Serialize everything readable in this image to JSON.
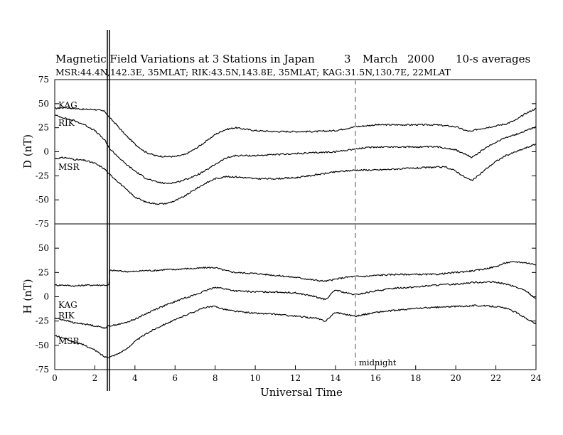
{
  "chart_data": [
    {
      "type": "line",
      "panel": "D",
      "title": "Magnetic Field Variations at 3 Stations in Japan",
      "date_parts": [
        "3",
        "March",
        "2000"
      ],
      "averaging": "10-s averages",
      "subtitle": "MSR:44.4N,142.3E, 35MLAT;  RIK:43.5N,143.8E, 35MLAT;  KAG:31.5N,130.7E, 22MLAT",
      "ylabel": "D (nT)",
      "xlim": [
        0,
        24
      ],
      "ylim": [
        -75,
        75
      ],
      "yticks": [
        75,
        50,
        25,
        0,
        -25,
        -50,
        -75
      ],
      "ytick_labels": [
        "75",
        "50",
        "25",
        "0",
        "-25",
        "-50",
        "-75"
      ],
      "x": [
        0,
        0.5,
        1,
        1.5,
        2,
        2.5,
        2.7,
        3,
        3.5,
        4,
        4.5,
        5,
        5.5,
        6,
        6.5,
        7,
        7.5,
        8,
        8.5,
        9,
        10,
        11,
        12,
        13,
        14,
        15,
        16,
        17,
        18,
        19,
        19.5,
        20,
        20.5,
        20.8,
        21,
        21.5,
        22,
        22.5,
        23,
        23.5,
        24
      ],
      "series": [
        {
          "name": "KAG",
          "values": [
            45,
            46,
            45,
            44,
            44,
            42,
            36,
            30,
            18,
            8,
            0,
            -4,
            -5,
            -5,
            -3,
            3,
            10,
            18,
            23,
            25,
            22,
            21,
            21,
            21,
            22,
            26,
            28,
            28,
            28,
            28,
            27,
            26,
            22,
            21,
            23,
            25,
            27,
            29,
            33,
            40,
            45
          ]
        },
        {
          "name": "RIK",
          "values": [
            38,
            35,
            32,
            28,
            22,
            12,
            4,
            -2,
            -12,
            -20,
            -27,
            -31,
            -33,
            -32,
            -29,
            -25,
            -20,
            -13,
            -7,
            -4,
            -4,
            -3,
            -2,
            -1,
            0,
            3,
            5,
            5,
            5,
            5,
            4,
            2,
            -3,
            -6,
            -3,
            4,
            10,
            15,
            18,
            22,
            26
          ]
        },
        {
          "name": "MSR",
          "values": [
            -7,
            -6,
            -8,
            -9,
            -12,
            -18,
            -23,
            -28,
            -38,
            -47,
            -52,
            -54,
            -54,
            -51,
            -46,
            -39,
            -33,
            -28,
            -26,
            -26,
            -28,
            -28,
            -27,
            -24,
            -21,
            -19,
            -19,
            -18,
            -17,
            -16,
            -16,
            -20,
            -27,
            -30,
            -27,
            -18,
            -10,
            -4,
            0,
            4,
            8
          ]
        }
      ]
    },
    {
      "type": "line",
      "panel": "H",
      "ylabel": "H (nT)",
      "xlabel": "Universal Time",
      "xlim": [
        0,
        24
      ],
      "ylim": [
        -75,
        75
      ],
      "xticks": [
        0,
        2,
        4,
        6,
        8,
        10,
        12,
        14,
        16,
        18,
        20,
        22,
        24
      ],
      "xtick_labels": [
        "0",
        "2",
        "4",
        "6",
        "8",
        "10",
        "12",
        "14",
        "16",
        "18",
        "20",
        "22",
        "24"
      ],
      "yticks": [
        75,
        50,
        25,
        0,
        -25,
        -50,
        -75
      ],
      "ytick_labels": [
        "75",
        "50",
        "25",
        "0",
        "-25",
        "-50",
        "-75"
      ],
      "x": [
        0,
        0.5,
        1,
        1.5,
        2,
        2.5,
        2.7,
        2.75,
        3,
        3.5,
        4,
        4.5,
        5,
        5.5,
        6,
        6.5,
        7,
        7.5,
        8,
        8.5,
        9,
        10,
        11,
        12,
        13,
        13.5,
        14,
        14.5,
        15,
        15.5,
        16,
        17,
        18,
        19,
        20,
        21,
        22,
        22.5,
        23,
        23.5,
        24
      ],
      "series": [
        {
          "name": "KAG",
          "values": [
            12,
            12,
            11,
            12,
            12,
            12,
            12,
            27,
            27,
            26,
            26,
            27,
            27,
            28,
            28,
            29,
            29,
            30,
            30,
            27,
            25,
            24,
            22,
            20,
            17,
            16,
            18,
            20,
            21,
            21,
            22,
            23,
            23,
            23,
            25,
            27,
            31,
            35,
            36,
            35,
            33
          ]
        },
        {
          "name": "RIK",
          "values": [
            -22,
            -24,
            -27,
            -28,
            -30,
            -32,
            -30,
            -30,
            -29,
            -27,
            -23,
            -18,
            -13,
            -9,
            -5,
            -1,
            2,
            6,
            10,
            8,
            6,
            5,
            5,
            4,
            0,
            -3,
            7,
            4,
            2,
            4,
            6,
            9,
            10,
            12,
            13,
            15,
            15,
            13,
            10,
            6,
            -2
          ]
        },
        {
          "name": "MSR",
          "values": [
            -40,
            -43,
            -47,
            -50,
            -55,
            -62,
            -62,
            -62,
            -60,
            -55,
            -46,
            -39,
            -33,
            -28,
            -24,
            -19,
            -15,
            -11,
            -10,
            -13,
            -15,
            -17,
            -18,
            -20,
            -22,
            -25,
            -16,
            -18,
            -20,
            -18,
            -16,
            -14,
            -12,
            -11,
            -10,
            -9,
            -10,
            -12,
            -16,
            -22,
            -28
          ]
        }
      ],
      "annotations": [
        "midnight"
      ]
    }
  ]
}
